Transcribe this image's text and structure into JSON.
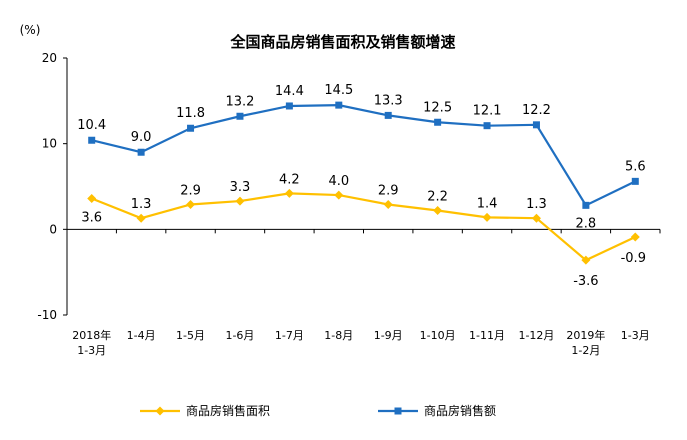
{
  "chart_data": {
    "type": "line",
    "title": "全国商品房销售面积及销售额增速",
    "unit_label": "(%)",
    "ylim": [
      -10,
      20
    ],
    "yticks": [
      "20",
      "10",
      "0",
      "-10"
    ],
    "categories": [
      [
        "2018年",
        "1-3月"
      ],
      [
        "1-4月"
      ],
      [
        "1-5月"
      ],
      [
        "1-6月"
      ],
      [
        "1-7月"
      ],
      [
        "1-8月"
      ],
      [
        "1-9月"
      ],
      [
        "1-10月"
      ],
      [
        "1-11月"
      ],
      [
        "1-12月"
      ],
      [
        "2019年",
        "1-2月"
      ],
      [
        "1-3月"
      ]
    ],
    "series": [
      {
        "name": "商品房销售面积",
        "color": "#FFC000",
        "marker": "diamond",
        "values": [
          3.6,
          1.3,
          2.9,
          3.3,
          4.2,
          4.0,
          2.9,
          2.2,
          1.4,
          1.3,
          -3.6,
          -0.9
        ],
        "labels": [
          "3.6",
          "1.3",
          "2.9",
          "3.3",
          "4.2",
          "4.0",
          "2.9",
          "2.2",
          "1.4",
          "1.3",
          "-3.6",
          "-0.9"
        ]
      },
      {
        "name": "商品房销售额",
        "color": "#1F6FC1",
        "marker": "square",
        "values": [
          10.4,
          9.0,
          11.8,
          13.2,
          14.4,
          14.5,
          13.3,
          12.5,
          12.1,
          12.2,
          2.8,
          5.6
        ],
        "labels": [
          "10.4",
          "9.0",
          "11.8",
          "13.2",
          "14.4",
          "14.5",
          "13.3",
          "12.5",
          "12.1",
          "12.2",
          "2.8",
          "5.6"
        ]
      }
    ],
    "grid": false,
    "legend_position": "bottom"
  }
}
